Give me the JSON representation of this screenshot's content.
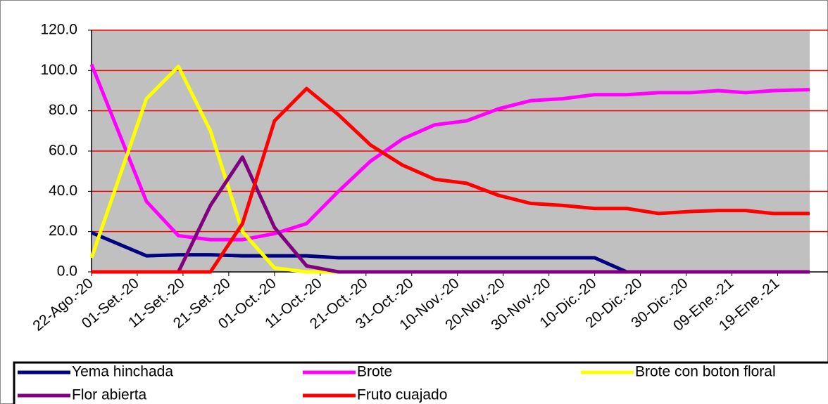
{
  "chart_data": {
    "type": "line",
    "x": [
      "2020-08-22",
      "2020-09-03",
      "2020-09-10",
      "2020-09-17",
      "2020-09-24",
      "2020-10-01",
      "2020-10-08",
      "2020-10-15",
      "2020-10-22",
      "2020-10-29",
      "2020-11-05",
      "2020-11-12",
      "2020-11-19",
      "2020-11-26",
      "2020-12-03",
      "2020-12-10",
      "2020-12-17",
      "2020-12-24",
      "2020-12-31",
      "2021-01-06",
      "2021-01-12",
      "2021-01-18",
      "2021-01-26"
    ],
    "series": [
      {
        "name": "Yema hinchada",
        "color": "#000080",
        "values": [
          19.5,
          8,
          8.5,
          8.5,
          8,
          8,
          8,
          7,
          7,
          7,
          7,
          7,
          7,
          7,
          7,
          7,
          0,
          0,
          0,
          0,
          0,
          0,
          0
        ]
      },
      {
        "name": "Brote",
        "color": "#ff00ff",
        "values": [
          103,
          35,
          18,
          16,
          16,
          19,
          24,
          40,
          55,
          66,
          73,
          75,
          81,
          85,
          86,
          88,
          88,
          89,
          89,
          90,
          89,
          90,
          90.5
        ]
      },
      {
        "name": "Brote con boton floral",
        "color": "#ffff00",
        "values": [
          7,
          86,
          102,
          70,
          20,
          2,
          0,
          0,
          0,
          0,
          0,
          0,
          0,
          0,
          0,
          0,
          0,
          0,
          0,
          0,
          0,
          0,
          0
        ]
      },
      {
        "name": "Flor abierta",
        "color": "#800080",
        "values": [
          0,
          0,
          0,
          33,
          57,
          22,
          3,
          0,
          0,
          0,
          0,
          0,
          0,
          0,
          0,
          0,
          0,
          0,
          0,
          0,
          0,
          0,
          0
        ]
      },
      {
        "name": "Fruto cuajado",
        "color": "#ff0000",
        "values": [
          0,
          0,
          0,
          0,
          24,
          75,
          91,
          78,
          63,
          53,
          46,
          44,
          38,
          34,
          33,
          31.5,
          31.5,
          29,
          30,
          30.5,
          30.5,
          29,
          29
        ]
      }
    ],
    "xlim": [
      "2020-08-22",
      "2021-01-26"
    ],
    "xticks": [
      {
        "value": "2020-08-22",
        "label": "22-Ago.-20"
      },
      {
        "value": "2020-09-01",
        "label": "01-Set.-20"
      },
      {
        "value": "2020-09-11",
        "label": "11-Set.-20"
      },
      {
        "value": "2020-09-21",
        "label": "21-Set.-20"
      },
      {
        "value": "2020-10-01",
        "label": "01-Oct.-20"
      },
      {
        "value": "2020-10-11",
        "label": "11-Oct.-20"
      },
      {
        "value": "2020-10-21",
        "label": "21-Oct.-20"
      },
      {
        "value": "2020-10-31",
        "label": "31-Oct.-20"
      },
      {
        "value": "2020-11-10",
        "label": "10-Nov.-20"
      },
      {
        "value": "2020-11-20",
        "label": "20-Nov.-20"
      },
      {
        "value": "2020-11-30",
        "label": "30-Nov.-20"
      },
      {
        "value": "2020-12-10",
        "label": "10-Dic.-20"
      },
      {
        "value": "2020-12-20",
        "label": "20-Dic.-20"
      },
      {
        "value": "2020-12-30",
        "label": "30-Dic.-20"
      },
      {
        "value": "2021-01-09",
        "label": "09-Ene.-21"
      },
      {
        "value": "2021-01-19",
        "label": "19-Ene.-21"
      }
    ],
    "ylim": [
      0,
      120
    ],
    "yticks": [
      {
        "value": 0,
        "label": "0.0"
      },
      {
        "value": 20,
        "label": "20.0"
      },
      {
        "value": 40,
        "label": "40.0"
      },
      {
        "value": 60,
        "label": "60.0"
      },
      {
        "value": 80,
        "label": "80.0"
      },
      {
        "value": 100,
        "label": "100.0"
      },
      {
        "value": 120,
        "label": "120.0"
      }
    ],
    "grid": true,
    "grid_color": "#ff0000",
    "plot_background": "#c0c0c0",
    "legend_position": "bottom"
  }
}
